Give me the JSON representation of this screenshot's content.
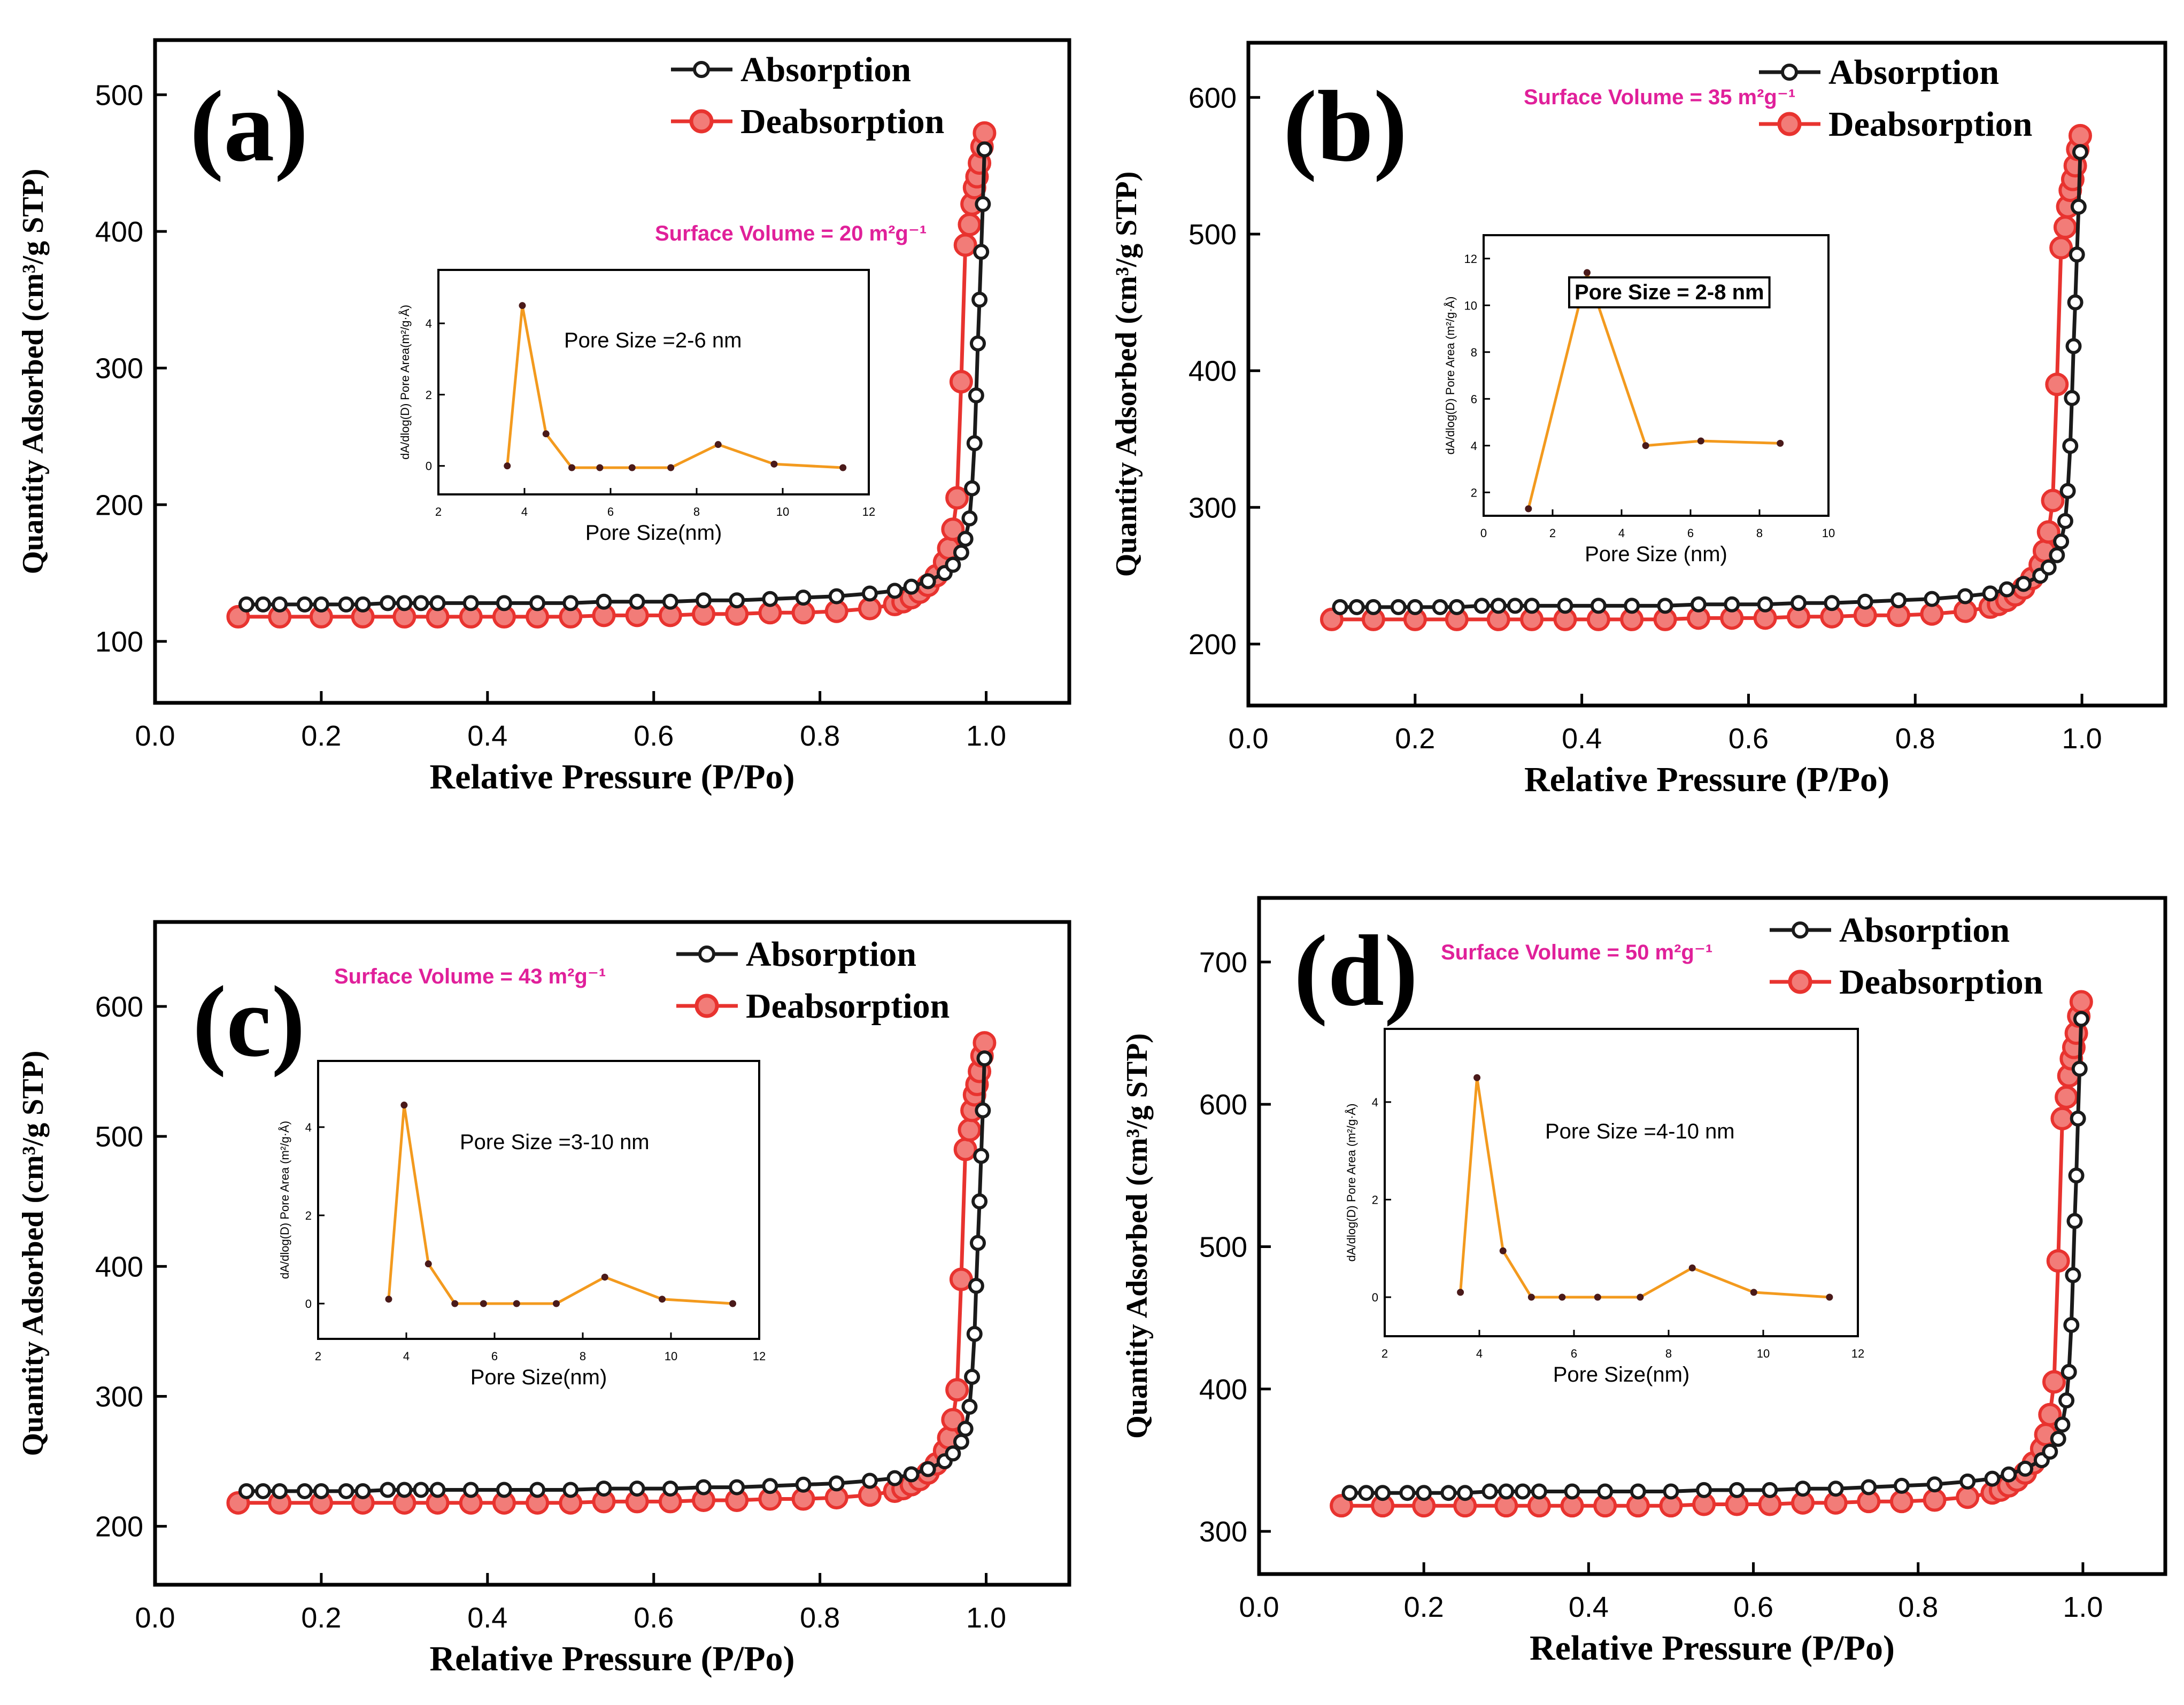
{
  "chart_data": [
    {
      "type": "line",
      "panel_label": "(a)",
      "xlabel": "Relative Pressure (P/Po)",
      "ylabel": "Quantity Adsorbed (cm³/g STP)",
      "xlim": [
        0.0,
        1.1
      ],
      "ylim": [
        55,
        540
      ],
      "xticks": [
        "0.0",
        "0.2",
        "0.4",
        "0.6",
        "0.8",
        "1.0"
      ],
      "yticks": [
        "100",
        "200",
        "300",
        "400",
        "500"
      ],
      "note": "Surface Volume = 20 m²g⁻¹",
      "legend_position": "top-right",
      "series": [
        {
          "name": "Absorption",
          "color": "#1a1a1a",
          "x": [
            0.11,
            0.13,
            0.15,
            0.18,
            0.2,
            0.23,
            0.25,
            0.28,
            0.3,
            0.32,
            0.34,
            0.38,
            0.42,
            0.46,
            0.5,
            0.54,
            0.58,
            0.62,
            0.66,
            0.7,
            0.74,
            0.78,
            0.82,
            0.86,
            0.89,
            0.91,
            0.93,
            0.95,
            0.96,
            0.97,
            0.975,
            0.98,
            0.983,
            0.986,
            0.988,
            0.99,
            0.992,
            0.994,
            0.996,
            0.998
          ],
          "y": [
            127,
            127,
            127,
            127,
            127,
            127,
            127,
            128,
            128,
            128,
            128,
            128,
            128,
            128,
            128,
            129,
            129,
            129,
            130,
            130,
            131,
            132,
            133,
            135,
            137,
            140,
            144,
            150,
            156,
            165,
            175,
            190,
            212,
            245,
            280,
            318,
            350,
            385,
            420,
            460
          ]
        },
        {
          "name": "Deabsorption",
          "color": "#e8332f",
          "x": [
            0.1,
            0.15,
            0.2,
            0.25,
            0.3,
            0.34,
            0.38,
            0.42,
            0.46,
            0.5,
            0.54,
            0.58,
            0.62,
            0.66,
            0.7,
            0.74,
            0.78,
            0.82,
            0.86,
            0.89,
            0.9,
            0.91,
            0.92,
            0.93,
            0.94,
            0.95,
            0.955,
            0.96,
            0.965,
            0.97,
            0.975,
            0.98,
            0.983,
            0.986,
            0.989,
            0.992,
            0.995,
            0.998
          ],
          "y": [
            118,
            118,
            118,
            118,
            118,
            118,
            118,
            118,
            118,
            118,
            119,
            119,
            119,
            120,
            120,
            121,
            121,
            122,
            124,
            127,
            129,
            132,
            136,
            141,
            148,
            158,
            168,
            182,
            205,
            290,
            390,
            405,
            420,
            432,
            440,
            450,
            462,
            472
          ]
        }
      ],
      "inset": {
        "xlabel": "Pore Size(nm)",
        "ylabel": "dA/dlog(D) Pore Area(m²/g·Å)",
        "xlim": [
          2,
          12
        ],
        "ylim": [
          -0.8,
          5.5
        ],
        "xticks": [
          "2",
          "4",
          "6",
          "8",
          "10",
          "12"
        ],
        "yticks": [
          "0",
          "2",
          "4"
        ],
        "annotation": "Pore Size =2-6 nm",
        "x": [
          3.6,
          3.95,
          4.5,
          5.1,
          5.75,
          6.5,
          7.4,
          8.5,
          9.8,
          11.4
        ],
        "y": [
          0.0,
          4.5,
          0.9,
          -0.05,
          -0.05,
          -0.05,
          -0.05,
          0.6,
          0.05,
          -0.05
        ]
      }
    },
    {
      "type": "line",
      "panel_label": "(b)",
      "xlabel": "Relative Pressure (P/Po)",
      "ylabel": "Quantity Adsorbed (cm³/g STP)",
      "xlim": [
        0.0,
        1.1
      ],
      "ylim": [
        155,
        640
      ],
      "xticks": [
        "0.0",
        "0.2",
        "0.4",
        "0.6",
        "0.8",
        "1.0"
      ],
      "yticks": [
        "200",
        "300",
        "400",
        "500",
        "600"
      ],
      "note": "Surface Volume = 35 m²g⁻¹",
      "legend_position": "top-right",
      "series": [
        {
          "name": "Absorption",
          "color": "#1a1a1a",
          "x": [
            0.11,
            0.13,
            0.15,
            0.18,
            0.2,
            0.23,
            0.25,
            0.28,
            0.3,
            0.32,
            0.34,
            0.38,
            0.42,
            0.46,
            0.5,
            0.54,
            0.58,
            0.62,
            0.66,
            0.7,
            0.74,
            0.78,
            0.82,
            0.86,
            0.89,
            0.91,
            0.93,
            0.95,
            0.96,
            0.97,
            0.975,
            0.98,
            0.983,
            0.986,
            0.988,
            0.99,
            0.992,
            0.994,
            0.996,
            0.998
          ],
          "y": [
            227,
            227,
            227,
            227,
            227,
            227,
            227,
            228,
            228,
            228,
            228,
            228,
            228,
            228,
            228,
            229,
            229,
            229,
            230,
            230,
            231,
            232,
            233,
            235,
            237,
            240,
            244,
            250,
            256,
            265,
            275,
            290,
            312,
            345,
            380,
            418,
            450,
            485,
            520,
            560
          ]
        },
        {
          "name": "Deabsorption",
          "color": "#e8332f",
          "x": [
            0.1,
            0.15,
            0.2,
            0.25,
            0.3,
            0.34,
            0.38,
            0.42,
            0.46,
            0.5,
            0.54,
            0.58,
            0.62,
            0.66,
            0.7,
            0.74,
            0.78,
            0.82,
            0.86,
            0.89,
            0.9,
            0.91,
            0.92,
            0.93,
            0.94,
            0.95,
            0.955,
            0.96,
            0.965,
            0.97,
            0.975,
            0.98,
            0.983,
            0.986,
            0.989,
            0.992,
            0.995,
            0.998
          ],
          "y": [
            218,
            218,
            218,
            218,
            218,
            218,
            218,
            218,
            218,
            218,
            219,
            219,
            219,
            220,
            220,
            221,
            221,
            222,
            224,
            227,
            229,
            232,
            236,
            241,
            248,
            258,
            268,
            282,
            305,
            390,
            490,
            505,
            520,
            532,
            540,
            550,
            562,
            572
          ]
        }
      ],
      "inset": {
        "xlabel": "Pore Size (nm)",
        "ylabel": "dA/dlog(D) Pore Area (m²/g·Å)",
        "xlim": [
          0,
          10
        ],
        "ylim": [
          1.0,
          13.0
        ],
        "xticks": [
          "0",
          "2",
          "4",
          "6",
          "8",
          "10"
        ],
        "yticks": [
          "2",
          "4",
          "6",
          "8",
          "10",
          "12"
        ],
        "annotation": "Pore Size = 2-8 nm",
        "x": [
          1.3,
          3.0,
          4.7,
          6.3,
          8.6
        ],
        "y": [
          1.3,
          11.4,
          4.0,
          4.2,
          4.1
        ]
      }
    },
    {
      "type": "line",
      "panel_label": "(c)",
      "xlabel": "Relative Pressure (P/Po)",
      "ylabel": "Quantity Adsorbed (cm³/g STP)",
      "xlim": [
        0.0,
        1.1
      ],
      "ylim": [
        155,
        665
      ],
      "xticks": [
        "0.0",
        "0.2",
        "0.4",
        "0.6",
        "0.8",
        "1.0"
      ],
      "yticks": [
        "200",
        "300",
        "400",
        "500",
        "600"
      ],
      "note": "Surface Volume = 43 m²g⁻¹",
      "legend_position": "top-right",
      "series": [
        {
          "name": "Absorption",
          "color": "#1a1a1a",
          "x": [
            0.11,
            0.13,
            0.15,
            0.18,
            0.2,
            0.23,
            0.25,
            0.28,
            0.3,
            0.32,
            0.34,
            0.38,
            0.42,
            0.46,
            0.5,
            0.54,
            0.58,
            0.62,
            0.66,
            0.7,
            0.74,
            0.78,
            0.82,
            0.86,
            0.89,
            0.91,
            0.93,
            0.95,
            0.96,
            0.97,
            0.975,
            0.98,
            0.983,
            0.986,
            0.988,
            0.99,
            0.992,
            0.994,
            0.996,
            0.998
          ],
          "y": [
            227,
            227,
            227,
            227,
            227,
            227,
            227,
            228,
            228,
            228,
            228,
            228,
            228,
            228,
            228,
            229,
            229,
            229,
            230,
            230,
            231,
            232,
            233,
            235,
            237,
            240,
            244,
            250,
            256,
            265,
            275,
            292,
            315,
            348,
            385,
            418,
            450,
            485,
            520,
            560
          ]
        },
        {
          "name": "Deabsorption",
          "color": "#e8332f",
          "x": [
            0.1,
            0.15,
            0.2,
            0.25,
            0.3,
            0.34,
            0.38,
            0.42,
            0.46,
            0.5,
            0.54,
            0.58,
            0.62,
            0.66,
            0.7,
            0.74,
            0.78,
            0.82,
            0.86,
            0.89,
            0.9,
            0.91,
            0.92,
            0.93,
            0.94,
            0.95,
            0.955,
            0.96,
            0.965,
            0.97,
            0.975,
            0.98,
            0.983,
            0.986,
            0.989,
            0.992,
            0.995,
            0.998
          ],
          "y": [
            218,
            218,
            218,
            218,
            218,
            218,
            218,
            218,
            218,
            218,
            219,
            219,
            219,
            220,
            220,
            221,
            221,
            222,
            224,
            227,
            229,
            232,
            236,
            241,
            248,
            258,
            268,
            282,
            305,
            390,
            490,
            505,
            520,
            532,
            540,
            550,
            562,
            572
          ]
        }
      ],
      "inset": {
        "xlabel": "Pore Size(nm)",
        "ylabel": "dA/dlog(D) Pore Area (m²/g·Å)",
        "xlim": [
          2,
          12
        ],
        "ylim": [
          -0.8,
          5.5
        ],
        "xticks": [
          "2",
          "4",
          "6",
          "8",
          "10",
          "12"
        ],
        "yticks": [
          "0",
          "2",
          "4"
        ],
        "annotation": "Pore Size =3-10 nm",
        "x": [
          3.6,
          3.95,
          4.5,
          5.1,
          5.75,
          6.5,
          7.4,
          8.5,
          9.8,
          11.4
        ],
        "y": [
          0.1,
          4.5,
          0.9,
          0.0,
          0.0,
          0.0,
          0.0,
          0.6,
          0.1,
          0.0
        ]
      }
    },
    {
      "type": "line",
      "panel_label": "(d)",
      "xlabel": "Relative Pressure (P/Po)",
      "ylabel": "Quantity Adsorbed (cm³/g STP)",
      "xlim": [
        0.0,
        1.1
      ],
      "ylim": [
        270,
        745
      ],
      "xticks": [
        "0.0",
        "0.2",
        "0.4",
        "0.6",
        "0.8",
        "1.0"
      ],
      "yticks": [
        "300",
        "400",
        "500",
        "600",
        "700"
      ],
      "note": "Surface Volume = 50 m²g⁻¹",
      "legend_position": "top-right",
      "series": [
        {
          "name": "Absorption",
          "color": "#1a1a1a",
          "x": [
            0.11,
            0.13,
            0.15,
            0.18,
            0.2,
            0.23,
            0.25,
            0.28,
            0.3,
            0.32,
            0.34,
            0.38,
            0.42,
            0.46,
            0.5,
            0.54,
            0.58,
            0.62,
            0.66,
            0.7,
            0.74,
            0.78,
            0.82,
            0.86,
            0.89,
            0.91,
            0.93,
            0.95,
            0.96,
            0.97,
            0.975,
            0.98,
            0.983,
            0.986,
            0.988,
            0.99,
            0.992,
            0.994,
            0.996,
            0.998
          ],
          "y": [
            327,
            327,
            327,
            327,
            327,
            327,
            327,
            328,
            328,
            328,
            328,
            328,
            328,
            328,
            328,
            329,
            329,
            329,
            330,
            330,
            331,
            332,
            333,
            335,
            337,
            340,
            344,
            350,
            356,
            365,
            375,
            392,
            412,
            445,
            480,
            518,
            550,
            590,
            625,
            660
          ]
        },
        {
          "name": "Deabsorption",
          "color": "#e8332f",
          "x": [
            0.1,
            0.15,
            0.2,
            0.25,
            0.3,
            0.34,
            0.38,
            0.42,
            0.46,
            0.5,
            0.54,
            0.58,
            0.62,
            0.66,
            0.7,
            0.74,
            0.78,
            0.82,
            0.86,
            0.89,
            0.9,
            0.91,
            0.92,
            0.93,
            0.94,
            0.95,
            0.955,
            0.96,
            0.965,
            0.97,
            0.975,
            0.98,
            0.983,
            0.986,
            0.989,
            0.992,
            0.995,
            0.998
          ],
          "y": [
            318,
            318,
            318,
            318,
            318,
            318,
            318,
            318,
            318,
            318,
            319,
            319,
            319,
            320,
            320,
            321,
            321,
            322,
            324,
            327,
            329,
            332,
            336,
            341,
            348,
            358,
            368,
            382,
            405,
            490,
            590,
            605,
            620,
            632,
            640,
            650,
            662,
            672
          ]
        }
      ],
      "inset": {
        "xlabel": "Pore Size(nm)",
        "ylabel": "dA/dlog(D) Pore Area (m²/g·Å)",
        "xlim": [
          2,
          12
        ],
        "ylim": [
          -0.8,
          5.5
        ],
        "xticks": [
          "2",
          "4",
          "6",
          "8",
          "10",
          "12"
        ],
        "yticks": [
          "0",
          "2",
          "4"
        ],
        "annotation": "Pore Size =4-10 nm",
        "x": [
          3.6,
          3.95,
          4.5,
          5.1,
          5.75,
          6.5,
          7.4,
          8.5,
          9.8,
          11.4
        ],
        "y": [
          0.1,
          4.5,
          0.95,
          0.0,
          0.0,
          0.0,
          0.0,
          0.6,
          0.1,
          0.0
        ]
      }
    }
  ]
}
